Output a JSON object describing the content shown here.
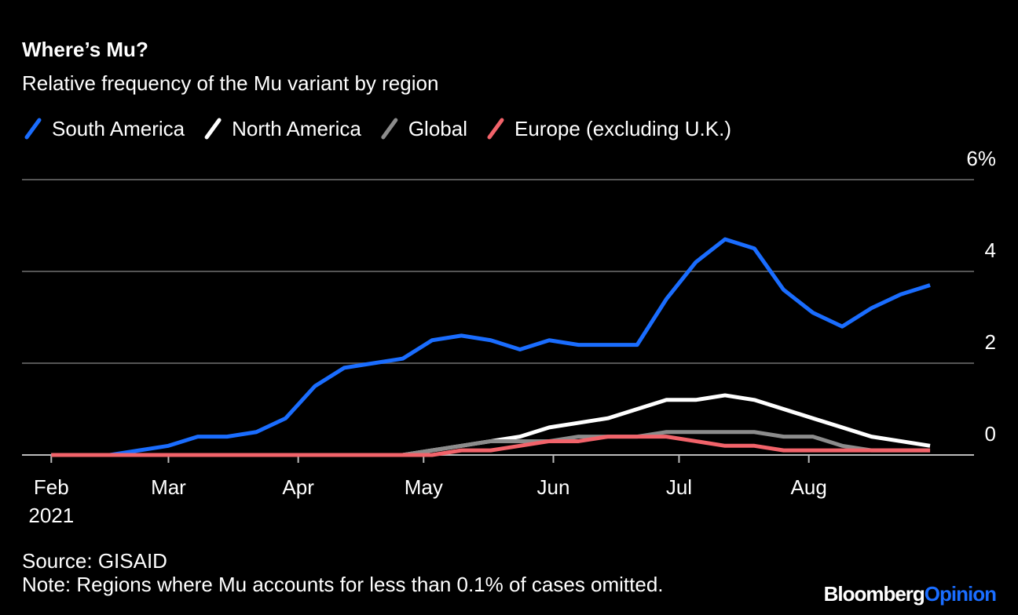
{
  "chart_data": {
    "type": "line",
    "title": "Where’s Mu?",
    "subtitle": "Relative frequency of the Mu variant by region",
    "x": [
      0,
      1,
      2,
      3,
      4,
      5,
      6,
      7,
      8,
      9,
      10,
      11,
      12,
      13,
      14,
      15,
      16,
      17,
      18,
      19,
      20,
      21,
      22,
      23,
      24,
      25,
      26,
      27,
      28,
      29,
      30
    ],
    "xlim": [
      -1,
      31.5
    ],
    "xticks": [
      {
        "value": 0,
        "label": "Feb\n2021"
      },
      {
        "value": 4,
        "label": "Mar"
      },
      {
        "value": 8.43,
        "label": "Apr"
      },
      {
        "value": 12.71,
        "label": "May"
      },
      {
        "value": 17.14,
        "label": "Jun"
      },
      {
        "value": 21.43,
        "label": "Jul"
      },
      {
        "value": 25.86,
        "label": "Aug"
      }
    ],
    "ylim": [
      0,
      6
    ],
    "yticks": [
      0,
      2,
      4,
      {
        "value": 6,
        "label": "6%"
      }
    ],
    "grid": true,
    "series": [
      {
        "name": "South America",
        "color": "#1a6dff",
        "values": [
          0,
          0,
          0,
          0.1,
          0.2,
          0.4,
          0.4,
          0.5,
          0.8,
          1.5,
          1.9,
          2.0,
          2.1,
          2.5,
          2.6,
          2.5,
          2.3,
          2.5,
          2.4,
          2.4,
          2.4,
          3.4,
          4.2,
          4.7,
          4.5,
          3.6,
          3.1,
          2.8,
          3.2,
          3.5,
          3.7
        ]
      },
      {
        "name": "North America",
        "color": "#ffffff",
        "values": [
          0,
          0,
          0,
          0,
          0,
          0,
          0,
          0,
          0,
          0,
          0,
          0,
          0,
          0.1,
          0.2,
          0.3,
          0.4,
          0.6,
          0.7,
          0.8,
          1.0,
          1.2,
          1.2,
          1.3,
          1.2,
          1.0,
          0.8,
          0.6,
          0.4,
          0.3,
          0.2
        ]
      },
      {
        "name": "Global",
        "color": "#8c8c8c",
        "values": [
          0,
          0,
          0,
          0,
          0,
          0,
          0,
          0,
          0,
          0,
          0,
          0,
          0,
          0.1,
          0.2,
          0.3,
          0.3,
          0.3,
          0.4,
          0.4,
          0.4,
          0.5,
          0.5,
          0.5,
          0.5,
          0.4,
          0.4,
          0.2,
          0.1,
          0.1,
          0.1
        ]
      },
      {
        "name": "Europe (excluding U.K.)",
        "color": "#f2636a",
        "values": [
          0,
          0,
          0,
          0,
          0,
          0,
          0,
          0,
          0,
          0,
          0,
          0,
          0,
          0,
          0.1,
          0.1,
          0.2,
          0.3,
          0.3,
          0.4,
          0.4,
          0.4,
          0.3,
          0.2,
          0.2,
          0.1,
          0.1,
          0.1,
          0.1,
          0.1,
          0.1
        ]
      }
    ],
    "source": "Source: GISAID",
    "note": "Note: Regions where Mu accounts for less than 0.1% of cases omitted.",
    "branding": [
      "Bloomberg",
      "Opinion"
    ]
  }
}
